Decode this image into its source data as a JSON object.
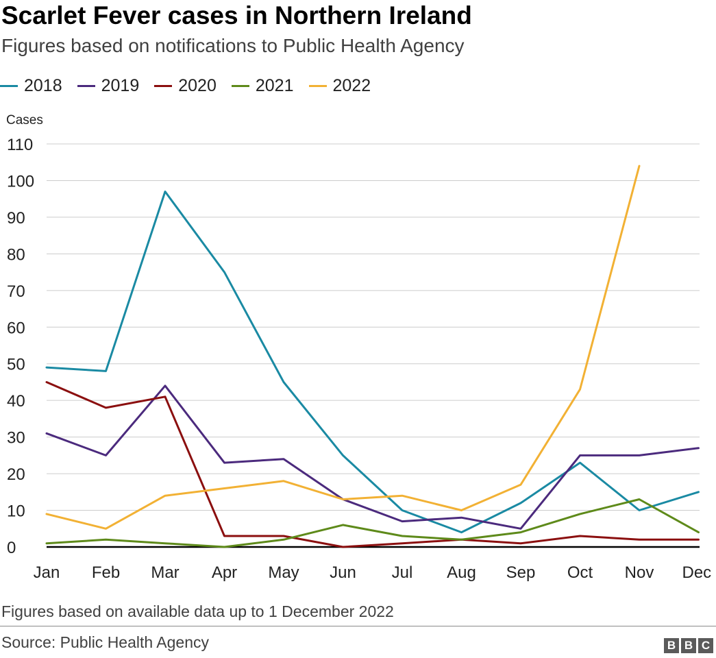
{
  "chart_data": {
    "type": "line",
    "title": "Scarlet Fever cases in Northern Ireland",
    "subtitle": "Figures based on notifications to Public Health Agency",
    "ylabel": "Cases",
    "xlabel": "",
    "categories": [
      "Jan",
      "Feb",
      "Mar",
      "Apr",
      "May",
      "Jun",
      "Jul",
      "Aug",
      "Sep",
      "Oct",
      "Nov",
      "Dec"
    ],
    "ylim": [
      0,
      110
    ],
    "yticks": [
      "0",
      "10",
      "20",
      "30",
      "40",
      "50",
      "60",
      "70",
      "80",
      "90",
      "100",
      "110"
    ],
    "grid": true,
    "legend_position": "top-left",
    "series": [
      {
        "name": "2018",
        "color": "#1a8aa3",
        "values": [
          49,
          48,
          97,
          75,
          45,
          25,
          10,
          4,
          12,
          23,
          10,
          15
        ]
      },
      {
        "name": "2019",
        "color": "#4b2a7d",
        "values": [
          31,
          25,
          44,
          23,
          24,
          13,
          7,
          8,
          5,
          25,
          25,
          27
        ]
      },
      {
        "name": "2020",
        "color": "#8b0f0f",
        "values": [
          45,
          38,
          41,
          3,
          3,
          0,
          1,
          2,
          1,
          3,
          2,
          2
        ]
      },
      {
        "name": "2021",
        "color": "#5e8a1a",
        "values": [
          1,
          2,
          1,
          0,
          2,
          6,
          3,
          2,
          4,
          9,
          13,
          4
        ]
      },
      {
        "name": "2022",
        "color": "#f2b134",
        "values": [
          9,
          5,
          14,
          16,
          18,
          13,
          14,
          10,
          17,
          43,
          104,
          null
        ]
      }
    ],
    "footnote": "Figures based on available data up to 1 December 2022",
    "source": "Source: Public Health Agency"
  },
  "branding": {
    "logo_letters": [
      "B",
      "B",
      "C"
    ]
  }
}
